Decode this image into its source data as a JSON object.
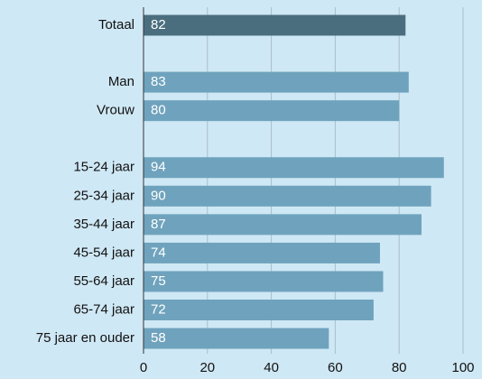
{
  "chart_data": {
    "type": "bar",
    "orientation": "horizontal",
    "categories": [
      "Totaal",
      null,
      "Man",
      "Vrouw",
      null,
      "15-24 jaar",
      "25-34 jaar",
      "35-44 jaar",
      "45-54 jaar",
      "55-64 jaar",
      "65-74 jaar",
      "75 jaar en ouder"
    ],
    "values": [
      82,
      null,
      83,
      80,
      null,
      94,
      90,
      87,
      74,
      75,
      72,
      58
    ],
    "colors": [
      "#4b6e7f",
      null,
      "#6fa3bd",
      "#6fa3bd",
      null,
      "#6fa3bd",
      "#6fa3bd",
      "#6fa3bd",
      "#6fa3bd",
      "#6fa3bd",
      "#6fa3bd",
      "#6fa3bd"
    ],
    "xlim": [
      0,
      100
    ],
    "xticks": [
      0,
      20,
      40,
      60,
      80,
      100
    ],
    "grid": true
  }
}
